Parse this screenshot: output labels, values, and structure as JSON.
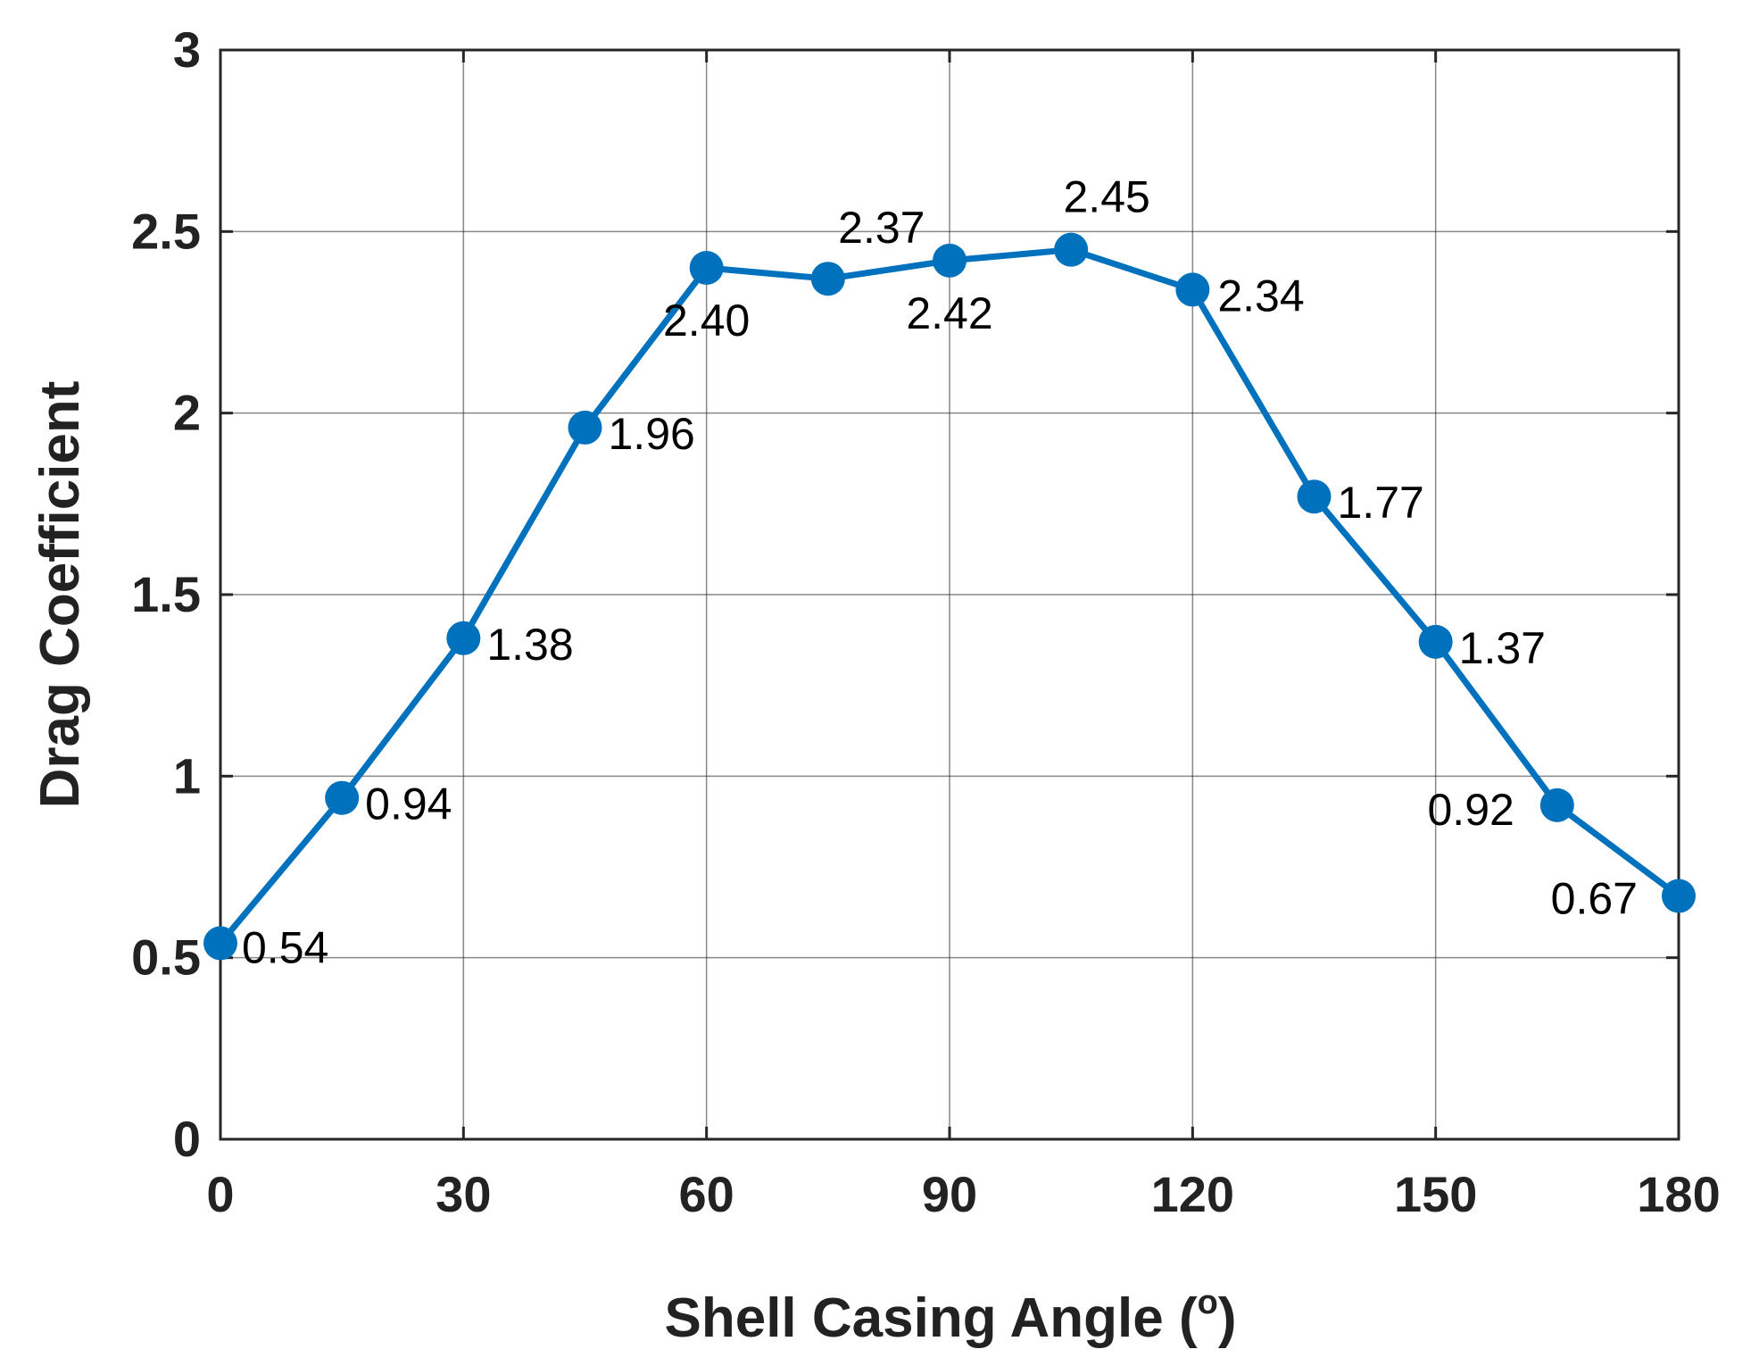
{
  "chart_data": {
    "type": "line",
    "xlabel": "Shell Casing Angle (",
    "xlabel_sup": "o",
    "xlabel_close": ")",
    "ylabel": "Drag Coefficient",
    "xlim": [
      0,
      180
    ],
    "ylim": [
      0,
      3
    ],
    "xticks": [
      0,
      30,
      60,
      90,
      120,
      150,
      180
    ],
    "xtick_labels": [
      "0",
      "30",
      "60",
      "90",
      "120",
      "150",
      "180"
    ],
    "yticks": [
      0,
      0.5,
      1,
      1.5,
      2,
      2.5,
      3
    ],
    "ytick_labels": [
      "0",
      "0.5",
      "1",
      "1.5",
      "2",
      "2.5",
      "3"
    ],
    "grid": true,
    "color": "#0072BD",
    "series": [
      {
        "name": "Drag Coefficient",
        "x": [
          0,
          15,
          30,
          45,
          60,
          75,
          90,
          105,
          120,
          135,
          150,
          165,
          180
        ],
        "values": [
          0.54,
          0.94,
          1.38,
          1.96,
          2.4,
          2.37,
          2.42,
          2.45,
          2.34,
          1.77,
          1.37,
          0.92,
          0.67
        ],
        "labels": [
          "0.54",
          "0.94",
          "1.38",
          "1.96",
          "2.40",
          "2.37",
          "2.42",
          "2.45",
          "2.34",
          "1.77",
          "1.37",
          "0.92",
          "0.67"
        ]
      }
    ]
  }
}
